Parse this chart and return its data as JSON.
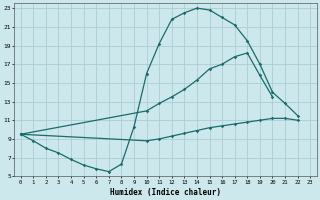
{
  "xlabel": "Humidex (Indice chaleur)",
  "bg_color": "#cce8ec",
  "grid_color": "#aacdd4",
  "line_color": "#1a6b6b",
  "xlim": [
    -0.5,
    23.5
  ],
  "ylim": [
    5,
    23.5
  ],
  "yticks": [
    5,
    7,
    9,
    11,
    13,
    15,
    17,
    19,
    21,
    23
  ],
  "xticks": [
    0,
    1,
    2,
    3,
    4,
    5,
    6,
    7,
    8,
    9,
    10,
    11,
    12,
    13,
    14,
    15,
    16,
    17,
    18,
    19,
    20,
    21,
    22,
    23
  ],
  "c1_x": [
    0,
    1,
    2,
    3,
    4,
    5,
    6,
    7,
    8,
    9,
    10,
    11,
    12,
    13,
    14,
    15,
    16,
    17,
    18,
    19,
    20,
    21,
    22
  ],
  "c1_y": [
    9.5,
    8.8,
    8.0,
    7.5,
    6.8,
    6.2,
    5.8,
    5.5,
    6.3,
    10.3,
    16.0,
    19.2,
    21.8,
    22.5,
    23.0,
    22.8,
    22.0,
    21.2,
    19.5,
    17.0,
    14.0,
    12.8,
    11.5
  ],
  "c2_x": [
    0,
    10,
    11,
    12,
    13,
    14,
    15,
    16,
    17,
    18,
    19,
    20
  ],
  "c2_y": [
    9.5,
    12.0,
    12.8,
    13.5,
    14.3,
    15.3,
    16.5,
    17.0,
    17.8,
    18.2,
    15.8,
    13.5
  ],
  "c3_x": [
    0,
    10,
    11,
    12,
    13,
    14,
    15,
    16,
    17,
    18,
    19,
    20,
    21,
    22
  ],
  "c3_y": [
    9.5,
    8.8,
    9.0,
    9.3,
    9.6,
    9.9,
    10.2,
    10.4,
    10.6,
    10.8,
    11.0,
    11.2,
    11.2,
    11.0
  ]
}
